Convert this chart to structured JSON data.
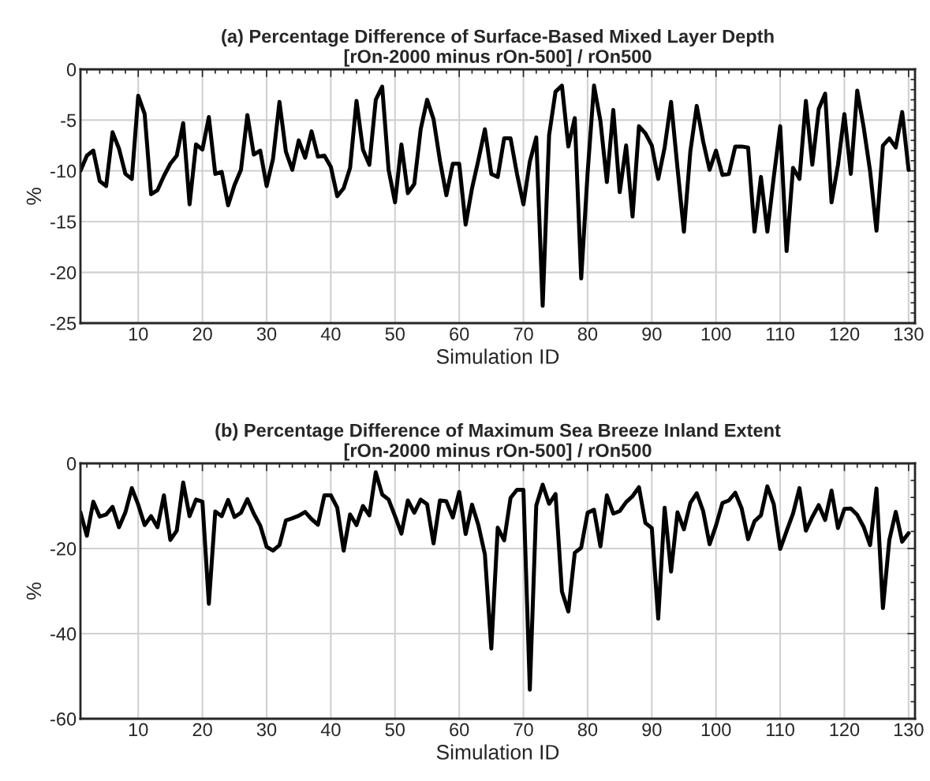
{
  "chart_data": [
    {
      "type": "line",
      "title": "(a) Percentage Difference of Surface-Based Mixed Layer Depth\n[rOn-2000 minus rOn-500] / rOn500",
      "xlabel": "Simulation ID",
      "ylabel": "%",
      "x": [
        1,
        2,
        3,
        4,
        5,
        6,
        7,
        8,
        9,
        10,
        11,
        12,
        13,
        14,
        15,
        16,
        17,
        18,
        19,
        20,
        21,
        22,
        23,
        24,
        25,
        26,
        27,
        28,
        29,
        30,
        31,
        32,
        33,
        34,
        35,
        36,
        37,
        38,
        39,
        40,
        41,
        42,
        43,
        44,
        45,
        46,
        47,
        48,
        49,
        50,
        51,
        52,
        53,
        54,
        55,
        56,
        57,
        58,
        59,
        60,
        61,
        62,
        63,
        64,
        65,
        66,
        67,
        68,
        69,
        70,
        71,
        72,
        73,
        74,
        75,
        76,
        77,
        78,
        79,
        80,
        81,
        82,
        83,
        84,
        85,
        86,
        87,
        88,
        89,
        90,
        91,
        92,
        93,
        94,
        95,
        96,
        97,
        98,
        99,
        100,
        101,
        102,
        103,
        104,
        105,
        106,
        107,
        108,
        109,
        110,
        111,
        112,
        113,
        114,
        115,
        116,
        117,
        118,
        119,
        120,
        121,
        122,
        123,
        124,
        125,
        126,
        127,
        128,
        129,
        130
      ],
      "series": [
        {
          "color": "#000000",
          "values": [
            -10,
            -8.5,
            -8,
            -11,
            -11.5,
            -6.2,
            -7.8,
            -10.3,
            -10.8,
            -2.6,
            -4.4,
            -12.3,
            -11.9,
            -10.5,
            -9.3,
            -8.5,
            -5.3,
            -13.3,
            -7.4,
            -7.9,
            -4.7,
            -10.3,
            -10.1,
            -13.4,
            -11.4,
            -9.9,
            -4.5,
            -8.4,
            -8,
            -11.5,
            -8.8,
            -3.2,
            -8.1,
            -9.9,
            -7,
            -8.7,
            -6.1,
            -8.6,
            -8.5,
            -9.6,
            -12.5,
            -11.7,
            -9.7,
            -3.1,
            -7.9,
            -9.4,
            -3,
            -1.7,
            -9.9,
            -13.1,
            -7.4,
            -12.2,
            -11.3,
            -5.9,
            -3,
            -4.9,
            -9,
            -12.4,
            -9.3,
            -9.3,
            -15.3,
            -11.7,
            -8.9,
            -5.9,
            -10.3,
            -10.6,
            -6.8,
            -6.8,
            -10.3,
            -13.3,
            -9.1,
            -6.7,
            -23.3,
            -6.5,
            -2.2,
            -1.6,
            -7.6,
            -4.8,
            -20.6,
            -10.2,
            -1.6,
            -5.1,
            -11.1,
            -4,
            -12.1,
            -7.5,
            -14.5,
            -5.6,
            -6.3,
            -7.5,
            -10.8,
            -7.7,
            -3.2,
            -9.7,
            -16,
            -8.1,
            -3.6,
            -7.1,
            -9.9,
            -8,
            -10.4,
            -10.3,
            -7.6,
            -7.6,
            -7.7,
            -16,
            -10.6,
            -16,
            -10.6,
            -5.6,
            -17.9,
            -9.7,
            -10.8,
            -3.1,
            -9.4,
            -3.9,
            -2.4,
            -13.1,
            -9.4,
            -4.4,
            -10.3,
            -2.1,
            -5.7,
            -10,
            -15.9,
            -7.5,
            -6.8,
            -7.7,
            -4.2,
            -9.9
          ]
        }
      ],
      "xlim": [
        1,
        131
      ],
      "xticks": [
        10,
        20,
        30,
        40,
        50,
        60,
        70,
        80,
        90,
        100,
        110,
        120,
        130
      ],
      "ylim": [
        -25,
        0
      ],
      "yticks": [
        -25,
        -20,
        -15,
        -10,
        -5,
        0
      ],
      "grid": true,
      "line_style": "solid"
    },
    {
      "type": "line",
      "title": "(b) Percentage Difference of Maximum Sea Breeze Inland Extent\n[rOn-2000 minus rOn-500] / rOn500",
      "xlabel": "Simulation ID",
      "ylabel": "%",
      "x": [
        1,
        2,
        3,
        4,
        5,
        6,
        7,
        8,
        9,
        10,
        11,
        12,
        13,
        14,
        15,
        16,
        17,
        18,
        19,
        20,
        21,
        22,
        23,
        24,
        25,
        26,
        27,
        28,
        29,
        30,
        31,
        32,
        33,
        34,
        35,
        36,
        37,
        38,
        39,
        40,
        41,
        42,
        43,
        44,
        45,
        46,
        47,
        48,
        49,
        50,
        51,
        52,
        53,
        54,
        55,
        56,
        57,
        58,
        59,
        60,
        61,
        62,
        63,
        64,
        65,
        66,
        67,
        68,
        69,
        70,
        71,
        72,
        73,
        74,
        75,
        76,
        77,
        78,
        79,
        80,
        81,
        82,
        83,
        84,
        85,
        86,
        87,
        88,
        89,
        90,
        91,
        92,
        93,
        94,
        95,
        96,
        97,
        98,
        99,
        100,
        101,
        102,
        103,
        104,
        105,
        106,
        107,
        108,
        109,
        110,
        111,
        112,
        113,
        114,
        115,
        116,
        117,
        118,
        119,
        120,
        121,
        122,
        123,
        124,
        125,
        126,
        127,
        128,
        129,
        130
      ],
      "series": [
        {
          "color": "#000000",
          "values": [
            -11.5,
            -17,
            -9,
            -12.5,
            -12,
            -10.2,
            -15,
            -11.5,
            -5.8,
            -9.7,
            -14.5,
            -12.4,
            -15,
            -7.5,
            -18,
            -15.8,
            -4.5,
            -12.4,
            -8.5,
            -9,
            -33,
            -11.3,
            -12.4,
            -8.6,
            -12.6,
            -11.6,
            -8.4,
            -11.8,
            -14.6,
            -19.6,
            -20.5,
            -19.2,
            -13.4,
            -12.9,
            -12.3,
            -11.4,
            -13.1,
            -14.4,
            -7.5,
            -7.5,
            -10.4,
            -20.5,
            -12,
            -14.5,
            -10,
            -12.2,
            -2.1,
            -7.3,
            -8.5,
            -12.4,
            -16.5,
            -8.7,
            -11.6,
            -8.5,
            -9.6,
            -18.8,
            -8.7,
            -8.9,
            -12.7,
            -6.7,
            -16.6,
            -9.7,
            -14.6,
            -21.4,
            -43.5,
            -15.1,
            -18.1,
            -8.1,
            -6.2,
            -6.2,
            -53.2,
            -9.9,
            -5,
            -9.5,
            -7.2,
            -30.1,
            -34.8,
            -21,
            -19.8,
            -11.6,
            -10.9,
            -19.5,
            -7.5,
            -11.8,
            -11.2,
            -9.1,
            -7.7,
            -5.6,
            -14,
            -15.2,
            -36.5,
            -10.4,
            -25.4,
            -11.5,
            -15.5,
            -9.3,
            -7,
            -11.2,
            -19,
            -14.6,
            -9.3,
            -8.7,
            -6.9,
            -10.6,
            -17.8,
            -13.6,
            -12.2,
            -5.4,
            -9.6,
            -20.1,
            -15.9,
            -11.8,
            -5.8,
            -15.8,
            -12.6,
            -9.8,
            -13.3,
            -6.4,
            -15.2,
            -10.7,
            -10.6,
            -12.1,
            -14.9,
            -19.2,
            -5.9,
            -34,
            -18,
            -11.4,
            -18.4,
            -16.4
          ]
        }
      ],
      "xlim": [
        1,
        131
      ],
      "xticks": [
        10,
        20,
        30,
        40,
        50,
        60,
        70,
        80,
        90,
        100,
        110,
        120,
        130
      ],
      "ylim": [
        -60,
        0
      ],
      "yticks": [
        -60,
        -40,
        -20,
        0
      ],
      "grid": true,
      "line_style": "solid"
    }
  ]
}
